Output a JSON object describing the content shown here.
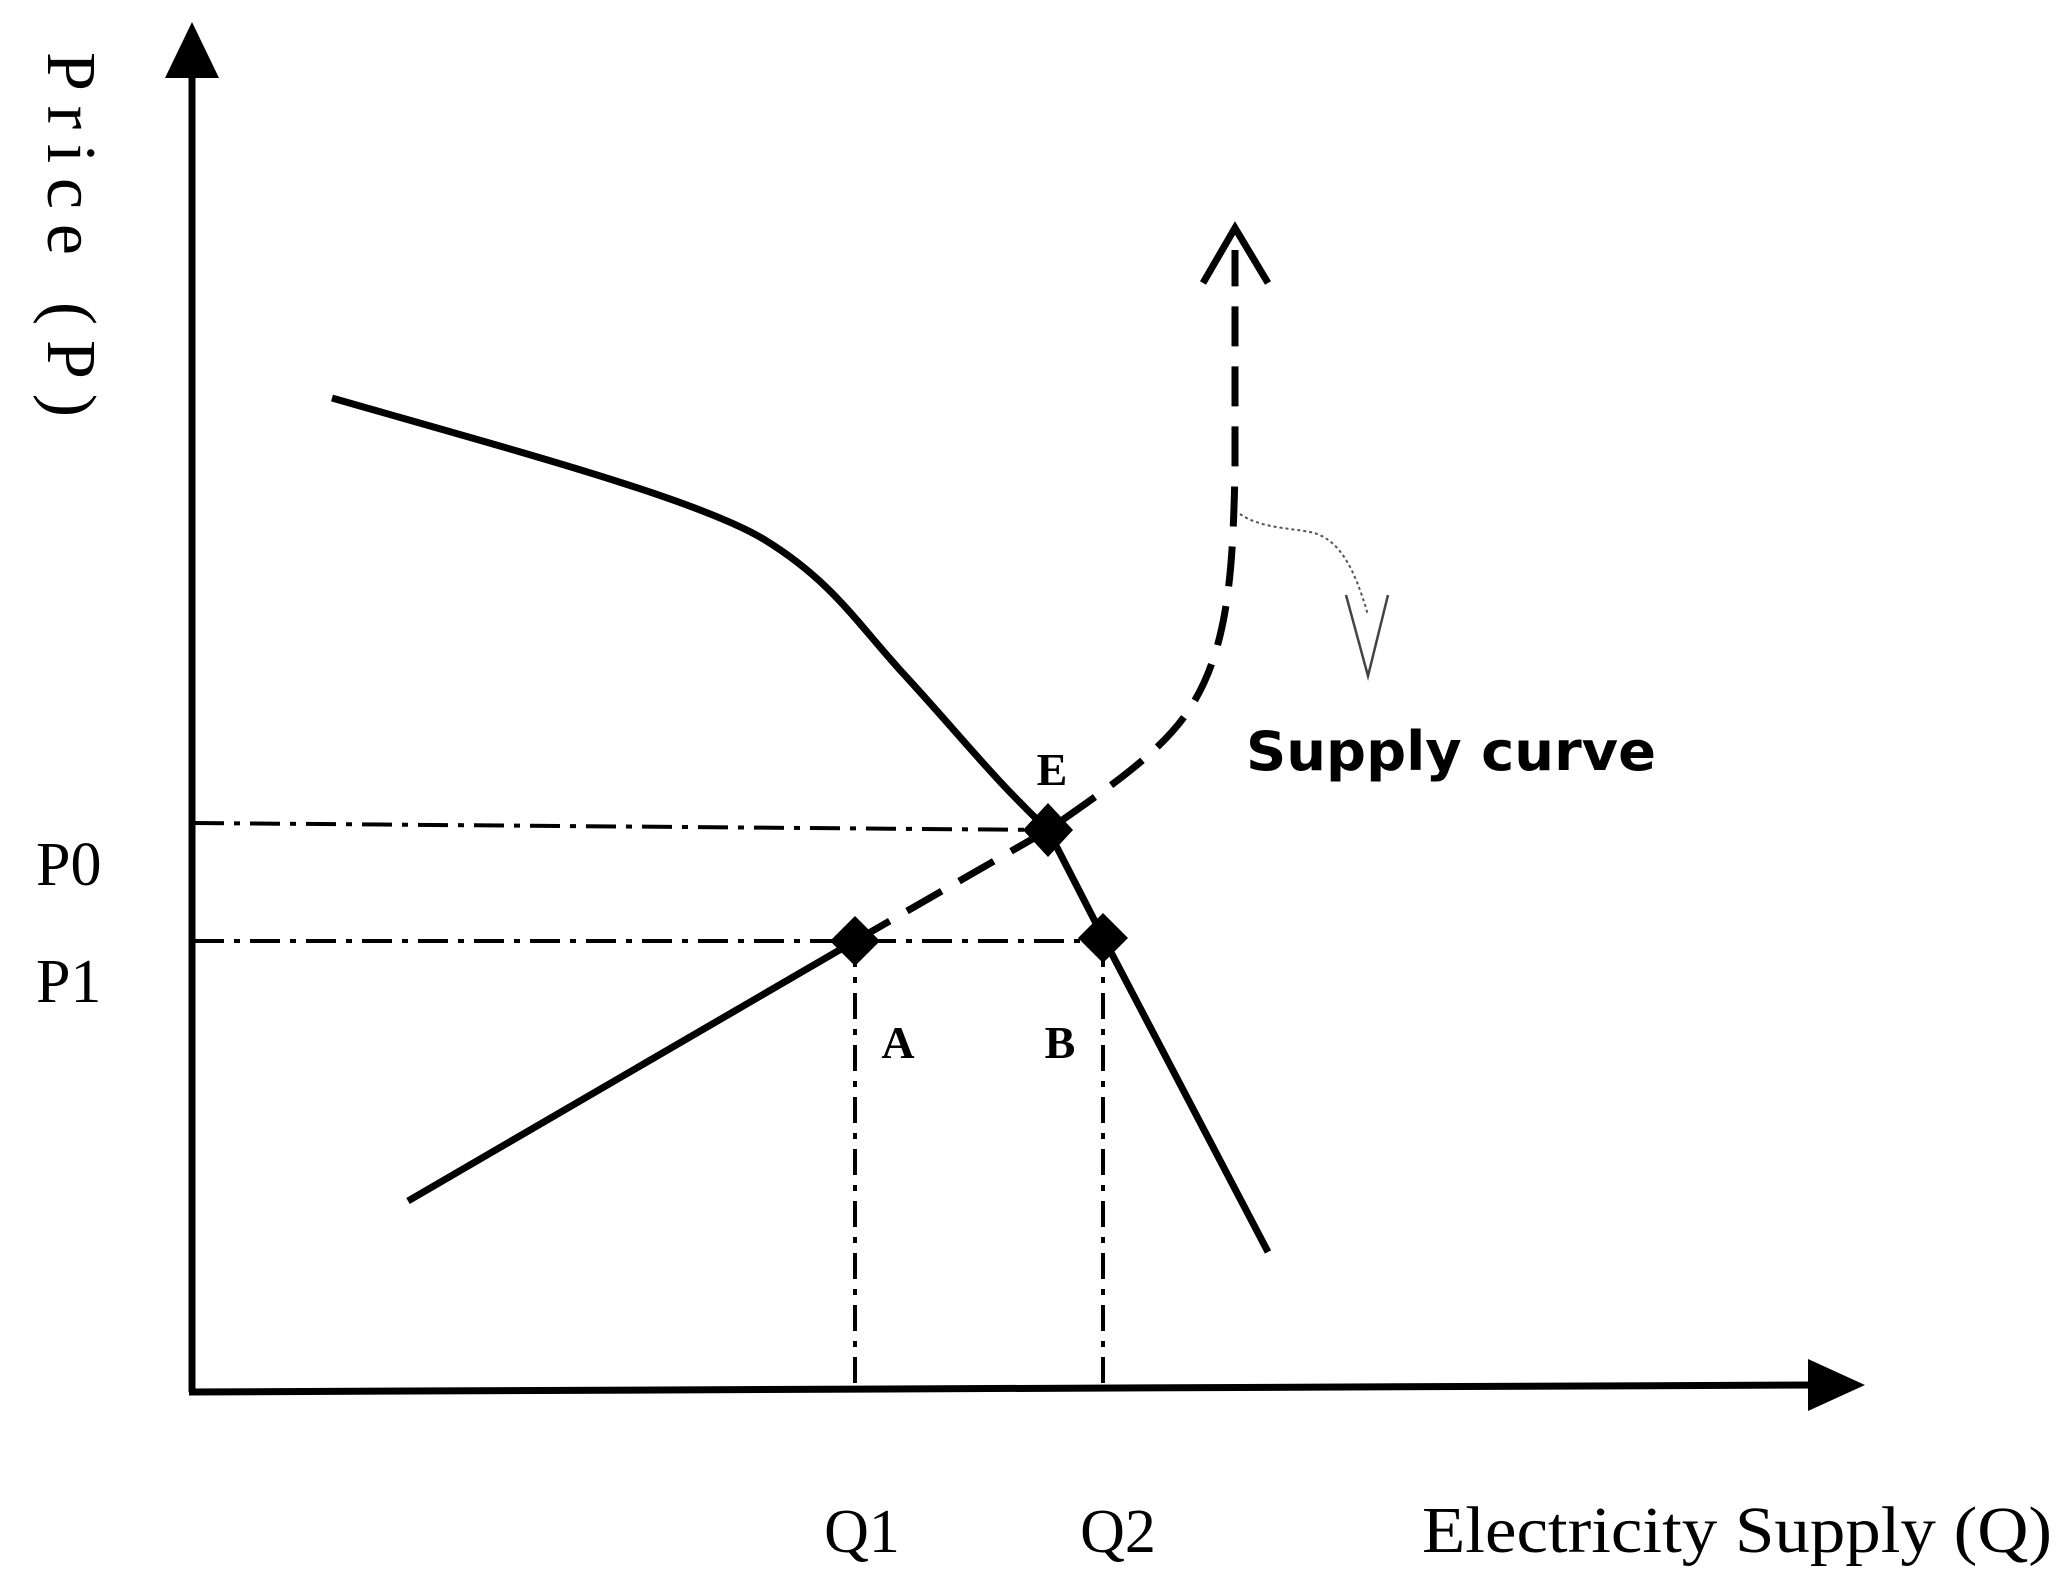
{
  "axes": {
    "y_label": "Price (P)",
    "x_label": "Electricity Supply (Q)"
  },
  "price_levels": {
    "p0": "P0",
    "p1": "P1"
  },
  "quantity_levels": {
    "q1": "Q1",
    "q2": "Q2"
  },
  "points": {
    "equilibrium": "E",
    "a": "A",
    "b": "B"
  },
  "curves": {
    "supply_label": "Supply curve"
  },
  "colors": {
    "ink": "#000000",
    "background": "#ffffff"
  }
}
